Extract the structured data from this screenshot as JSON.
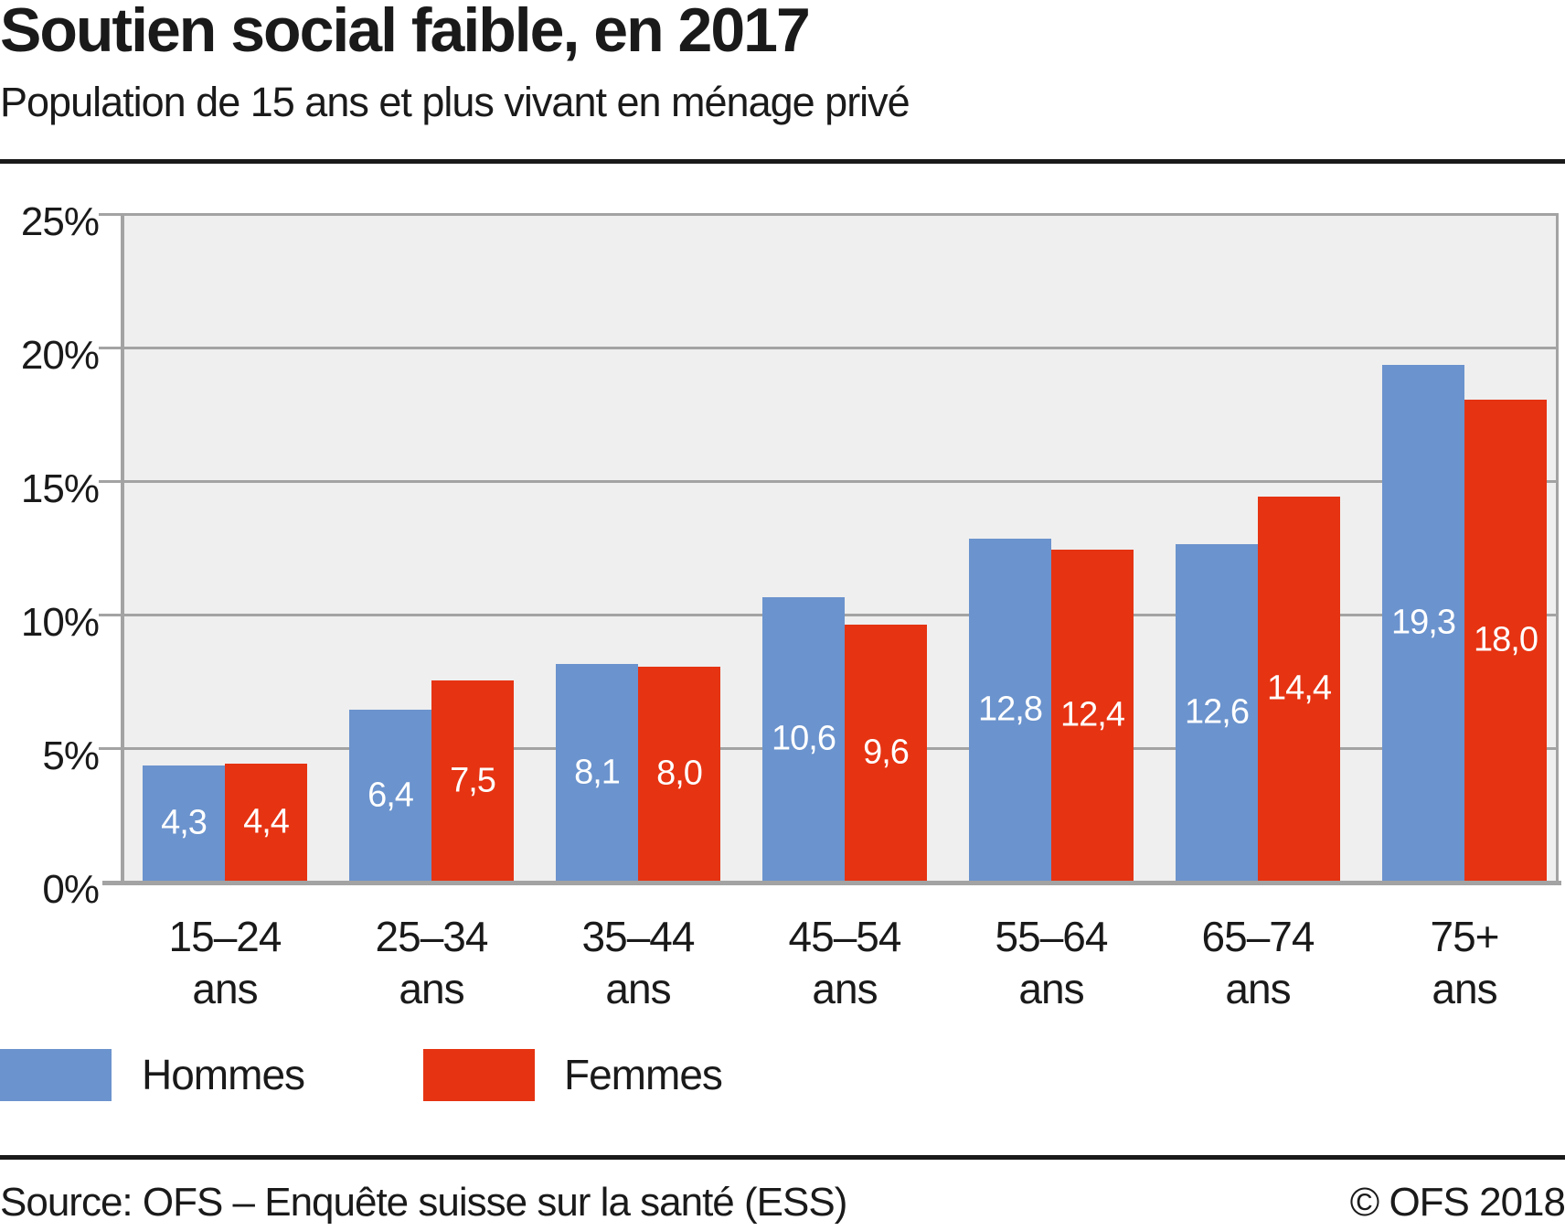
{
  "header": {
    "title": "Soutien social faible, en 2017",
    "subtitle": "Population de 15 ans et plus vivant en ménage privé"
  },
  "chart_data": {
    "type": "bar",
    "title": "Soutien social faible, en 2017",
    "subtitle": "Population de 15 ans et plus vivant en ménage privé",
    "xlabel": "",
    "ylabel": "",
    "ylim": [
      0,
      25
    ],
    "grid": true,
    "legend_position": "bottom",
    "unit_suffix": "ans",
    "categories": [
      "15–24",
      "25–34",
      "35–44",
      "45–54",
      "55–64",
      "65–74",
      "75+"
    ],
    "yticks": [
      {
        "value": 25,
        "label": "25%"
      },
      {
        "value": 20,
        "label": "20%"
      },
      {
        "value": 15,
        "label": "15%"
      },
      {
        "value": 10,
        "label": "10%"
      },
      {
        "value": 5,
        "label": "5%"
      },
      {
        "value": 0,
        "label": "0%"
      }
    ],
    "series": [
      {
        "name": "Hommes",
        "color": "#6b93cd",
        "values": [
          4.3,
          6.4,
          8.1,
          10.6,
          12.8,
          12.6,
          19.3
        ],
        "labels": [
          "4,3",
          "6,4",
          "8,1",
          "10,6",
          "12,8",
          "12,6",
          "19,3"
        ]
      },
      {
        "name": "Femmes",
        "color": "#e63312",
        "values": [
          4.4,
          7.5,
          8.0,
          9.6,
          12.4,
          14.4,
          18.0
        ],
        "labels": [
          "4,4",
          "7,5",
          "8,0",
          "9,6",
          "12,4",
          "14,4",
          "18,0"
        ]
      }
    ]
  },
  "footer": {
    "source": "Source: OFS – Enquête suisse sur la santé (ESS)",
    "copyright": "© OFS 2018"
  }
}
